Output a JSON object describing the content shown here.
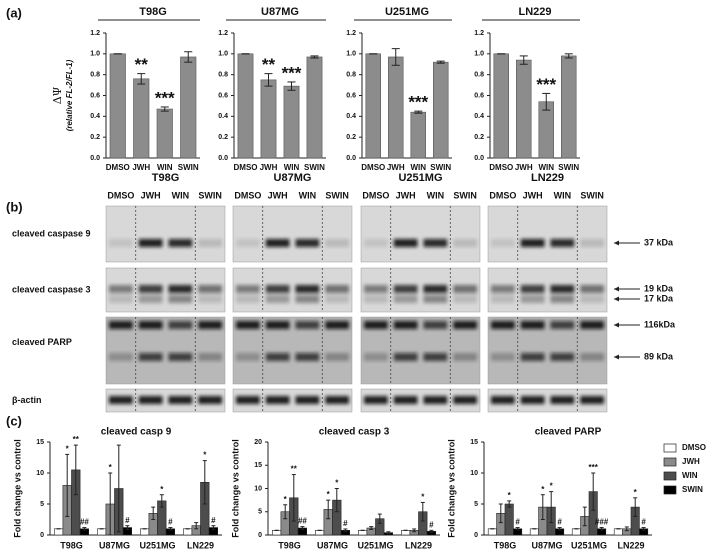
{
  "panel_labels": [
    "(a)",
    "(b)",
    "(c)"
  ],
  "chart_data": [
    {
      "type": "bar",
      "title": "T98G",
      "categories": [
        "DMSO",
        "JWH",
        "WIN",
        "SWIN"
      ],
      "values": [
        1.0,
        0.76,
        0.47,
        0.97
      ],
      "errors": [
        0,
        0.05,
        0.02,
        0.05
      ],
      "color": "#8c8c8c",
      "ylim": [
        0,
        1.2
      ],
      "yticks": [
        {
          "value": 0,
          "label": "0.0"
        },
        {
          "value": 0.2,
          "label": "0.2"
        },
        {
          "value": 0.4,
          "label": "0.4"
        },
        {
          "value": 0.6,
          "label": "0.6"
        },
        {
          "value": 0.8,
          "label": "0.8"
        },
        {
          "value": 1.0,
          "label": "1.0"
        },
        {
          "value": 1.2,
          "label": "1.2"
        }
      ],
      "ylabel": "ΔΨ",
      "ylabel_sub": "(relative FL-2/FL-1)",
      "annotations": [
        {
          "category": "JWH",
          "text": "**"
        },
        {
          "category": "WIN",
          "text": "***"
        }
      ]
    },
    {
      "type": "bar",
      "title": "U87MG",
      "categories": [
        "DMSO",
        "JWH",
        "WIN",
        "SWIN"
      ],
      "values": [
        1.0,
        0.75,
        0.69,
        0.97
      ],
      "errors": [
        0,
        0.06,
        0.04,
        0.01
      ],
      "color": "#8c8c8c",
      "ylim": [
        0,
        1.2
      ],
      "yticks": [
        {
          "value": 0,
          "label": "0.0"
        },
        {
          "value": 0.2,
          "label": "0.2"
        },
        {
          "value": 0.4,
          "label": "0.4"
        },
        {
          "value": 0.6,
          "label": "0.6"
        },
        {
          "value": 0.8,
          "label": "0.8"
        },
        {
          "value": 1.0,
          "label": "1.0"
        },
        {
          "value": 1.2,
          "label": "1.2"
        }
      ],
      "annotations": [
        {
          "category": "JWH",
          "text": "**"
        },
        {
          "category": "WIN",
          "text": "***"
        }
      ]
    },
    {
      "type": "bar",
      "title": "U251MG",
      "categories": [
        "DMSO",
        "JWH",
        "WIN",
        "SWIN"
      ],
      "values": [
        1.0,
        0.97,
        0.44,
        0.92
      ],
      "errors": [
        0,
        0.08,
        0.01,
        0.01
      ],
      "color": "#8c8c8c",
      "ylim": [
        0,
        1.2
      ],
      "yticks": [
        {
          "value": 0,
          "label": "0.0"
        },
        {
          "value": 0.2,
          "label": "0.2"
        },
        {
          "value": 0.4,
          "label": "0.4"
        },
        {
          "value": 0.6,
          "label": "0.6"
        },
        {
          "value": 0.8,
          "label": "0.8"
        },
        {
          "value": 1.0,
          "label": "1.0"
        },
        {
          "value": 1.2,
          "label": "1.2"
        }
      ],
      "annotations": [
        {
          "category": "WIN",
          "text": "***"
        }
      ]
    },
    {
      "type": "bar",
      "title": "LN229",
      "categories": [
        "DMSO",
        "JWH",
        "WIN",
        "SWIN"
      ],
      "values": [
        1.0,
        0.94,
        0.54,
        0.98
      ],
      "errors": [
        0,
        0.04,
        0.08,
        0.02
      ],
      "color": "#8c8c8c",
      "ylim": [
        0,
        1.2
      ],
      "yticks": [
        {
          "value": 0,
          "label": "0.0"
        },
        {
          "value": 0.2,
          "label": "0.2"
        },
        {
          "value": 0.4,
          "label": "0.4"
        },
        {
          "value": 0.6,
          "label": "0.6"
        },
        {
          "value": 0.8,
          "label": "0.8"
        },
        {
          "value": 1.0,
          "label": "1.0"
        },
        {
          "value": 1.2,
          "label": "1.2"
        }
      ],
      "annotations": [
        {
          "category": "WIN",
          "text": "***"
        }
      ]
    },
    {
      "type": "grouped_bar",
      "title": "cleaved casp 9",
      "categories": [
        "T98G",
        "U87MG",
        "U251MG",
        "LN229"
      ],
      "ylabel": "Fold change vs control",
      "ylim": [
        0,
        15
      ],
      "yticks": [
        0,
        5,
        10,
        15
      ],
      "series": [
        {
          "name": "DMSO",
          "color": "#ffffff",
          "values": [
            1,
            1,
            1,
            1
          ],
          "errors": [
            0,
            0,
            0,
            0
          ]
        },
        {
          "name": "JWH",
          "color": "#8a8a8a",
          "values": [
            8,
            5,
            3.5,
            1.5
          ],
          "errors": [
            5,
            5,
            1,
            0.5
          ]
        },
        {
          "name": "WIN",
          "color": "#4d4d4d",
          "values": [
            10.5,
            7.5,
            5.5,
            8.5
          ],
          "errors": [
            4,
            7,
            1,
            3.5
          ]
        },
        {
          "name": "SWIN",
          "color": "#000000",
          "values": [
            1,
            1.2,
            1,
            1.2
          ],
          "errors": [
            0.2,
            0.3,
            0.2,
            0.3
          ]
        }
      ],
      "annotations": [
        {
          "category": "T98G",
          "series": "JWH",
          "text": "*"
        },
        {
          "category": "T98G",
          "series": "WIN",
          "text": "**"
        },
        {
          "category": "T98G",
          "series": "SWIN",
          "text": "##"
        },
        {
          "category": "U87MG",
          "series": "JWH",
          "text": "*"
        },
        {
          "category": "U87MG",
          "series": "SWIN",
          "text": "#"
        },
        {
          "category": "U251MG",
          "series": "WIN",
          "text": "*"
        },
        {
          "category": "U251MG",
          "series": "SWIN",
          "text": "#"
        },
        {
          "category": "LN229",
          "series": "WIN",
          "text": "*"
        },
        {
          "category": "LN229",
          "series": "SWIN",
          "text": "#"
        }
      ]
    },
    {
      "type": "grouped_bar",
      "title": "cleaved casp 3",
      "categories": [
        "T98G",
        "U87MG",
        "U251MG",
        "LN229"
      ],
      "ylabel": "Fold change vs control",
      "ylim": [
        0,
        20
      ],
      "yticks": [
        0,
        5,
        10,
        15,
        20
      ],
      "series": [
        {
          "name": "DMSO",
          "color": "#ffffff",
          "values": [
            1,
            1,
            1,
            1
          ],
          "errors": [
            0,
            0,
            0,
            0
          ]
        },
        {
          "name": "JWH",
          "color": "#8a8a8a",
          "values": [
            5,
            5.5,
            1.5,
            1
          ],
          "errors": [
            1.5,
            2,
            0.3,
            0.3
          ]
        },
        {
          "name": "WIN",
          "color": "#4d4d4d",
          "values": [
            8,
            7.5,
            3.5,
            5
          ],
          "errors": [
            5,
            2.5,
            1,
            2
          ]
        },
        {
          "name": "SWIN",
          "color": "#000000",
          "values": [
            1.5,
            1,
            0.5,
            0.8
          ],
          "errors": [
            0.3,
            0.3,
            0.2,
            0.2
          ]
        }
      ],
      "annotations": [
        {
          "category": "T98G",
          "series": "JWH",
          "text": "*"
        },
        {
          "category": "T98G",
          "series": "WIN",
          "text": "**"
        },
        {
          "category": "T98G",
          "series": "SWIN",
          "text": "##"
        },
        {
          "category": "U87MG",
          "series": "JWH",
          "text": "*"
        },
        {
          "category": "U87MG",
          "series": "WIN",
          "text": "*"
        },
        {
          "category": "U87MG",
          "series": "SWIN",
          "text": "#"
        },
        {
          "category": "LN229",
          "series": "WIN",
          "text": "*"
        },
        {
          "category": "LN229",
          "series": "SWIN",
          "text": "#"
        }
      ]
    },
    {
      "type": "grouped_bar",
      "title": "cleaved PARP",
      "categories": [
        "T98G",
        "U87MG",
        "U251MG",
        "LN229"
      ],
      "ylabel": "Fold change vs control",
      "ylim": [
        0,
        15
      ],
      "yticks": [
        0,
        5,
        10,
        15
      ],
      "legend": "right",
      "series": [
        {
          "name": "DMSO",
          "color": "#ffffff",
          "values": [
            1,
            1,
            1,
            1
          ],
          "errors": [
            0,
            0,
            0,
            0
          ]
        },
        {
          "name": "JWH",
          "color": "#8a8a8a",
          "values": [
            3.5,
            4.5,
            3,
            1
          ],
          "errors": [
            1.5,
            2,
            1.5,
            0.3
          ]
        },
        {
          "name": "WIN",
          "color": "#4d4d4d",
          "values": [
            5,
            4.5,
            7,
            4.5
          ],
          "errors": [
            0.5,
            2.5,
            3,
            1.5
          ]
        },
        {
          "name": "SWIN",
          "color": "#000000",
          "values": [
            1,
            1,
            1,
            1
          ],
          "errors": [
            0.2,
            0.2,
            0.2,
            0.2
          ]
        }
      ],
      "annotations": [
        {
          "category": "T98G",
          "series": "WIN",
          "text": "*"
        },
        {
          "category": "T98G",
          "series": "SWIN",
          "text": "#"
        },
        {
          "category": "U87MG",
          "series": "JWH",
          "text": "*"
        },
        {
          "category": "U87MG",
          "series": "WIN",
          "text": "*"
        },
        {
          "category": "U87MG",
          "series": "SWIN",
          "text": "#"
        },
        {
          "category": "U251MG",
          "series": "WIN",
          "text": "***"
        },
        {
          "category": "U251MG",
          "series": "SWIN",
          "text": "###"
        },
        {
          "category": "LN229",
          "series": "WIN",
          "text": "*"
        },
        {
          "category": "LN229",
          "series": "SWIN",
          "text": "#"
        }
      ]
    }
  ],
  "blot": {
    "cell_lines": [
      "T98G",
      "U87MG",
      "U251MG",
      "LN229"
    ],
    "lanes": [
      "DMSO",
      "JWH",
      "WIN",
      "SWIN"
    ],
    "rows": [
      {
        "label": "cleaved caspase 9",
        "markers": [
          "37 kDa"
        ]
      },
      {
        "label": "cleaved caspase 3",
        "markers": [
          "19 kDa",
          "17 kDa"
        ]
      },
      {
        "label": "cleaved PARP",
        "markers": [
          "116kDa",
          "89 kDa"
        ]
      },
      {
        "label": "β-actin",
        "markers": []
      }
    ]
  }
}
